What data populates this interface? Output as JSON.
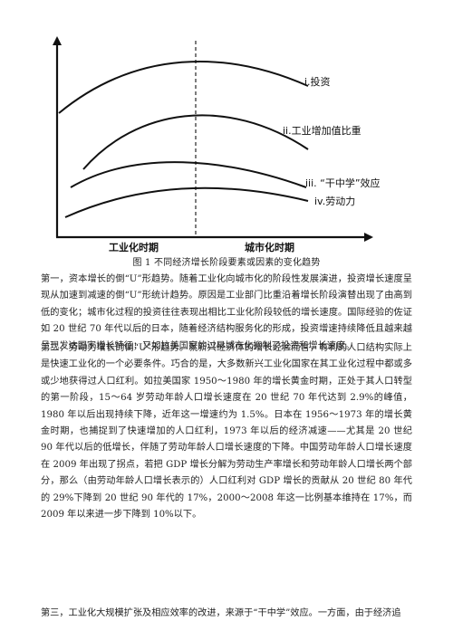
{
  "figure": {
    "curves": [
      {
        "label": "i.投资"
      },
      {
        "label": "ii.工业增加值比重"
      },
      {
        "label": "iii. “干中学”效应"
      },
      {
        "label": "iv.劳动力"
      }
    ],
    "x_phases": [
      "工业化时期",
      "城市化时期"
    ],
    "caption": "图 1  不同经济增长阶段要素或因素的变化趋势"
  },
  "paragraphs": [
    "第一，资本增长的倒“U”形趋势。随着工业化向城市化的阶段性发展演进，投资增长速度呈现从加速到减速的倒“U”形统计趋势。原因是工业部门比重沿着增长阶段演替出现了由高到低的变化；城市化过程的投资往往表现出相比工业化阶段较低的增长速度。国际经验的佐证如 20 世纪 70 年代以后的日本，随着经济结构服务化的形成，投资增速持续降低且越来越呈现发达国家增长特征；又如拉美国家的过早城市化抑制了投资和增长速度。",
    "第二，劳动力增长的倒“U”形趋势。就新兴经济体的增长经验而言，有利的人口结构实际上是快速工业化的一个必要条件。巧合的是，大多数新兴工业化国家在其工业化过程中都或多或少地获得过人口红利。如拉美国家 1950～1980 年的增长黄金时期，正处于其人口转型的第一阶段，15～64 岁劳动年龄人口增长速度在 20 世纪 70 年代达到 2.9%的峰值，1980 年以后出现持续下降，近年这一增速约为 1.5%。日本在 1956～1973 年的增长黄金时期，也捕捉到了快速增加的人口红利，1973 年以后的经济减速——尤其是 20 世纪 90 年代以后的低增长，伴随了劳动年龄人口增长速度的下降。中国劳动年龄人口增长速度在 2009 年出现了拐点，若把 GDP 增长分解为劳动生产率增长和劳动年龄人口增长两个部分，那么（由劳动年龄人口增长表示的）人口红利对 GDP 增长的贡献从 20 世纪 80 年代的 29%下降到 20 世纪 90 年代的 17%，2000～2008 年这一比例基本维持在 17%，而 2009 年以来进一步下降到 10%以下。",
    "第三，工业化大规模扩张及相应效率的改进，来源于“干中学”效应。一方面，由于经济追"
  ]
}
